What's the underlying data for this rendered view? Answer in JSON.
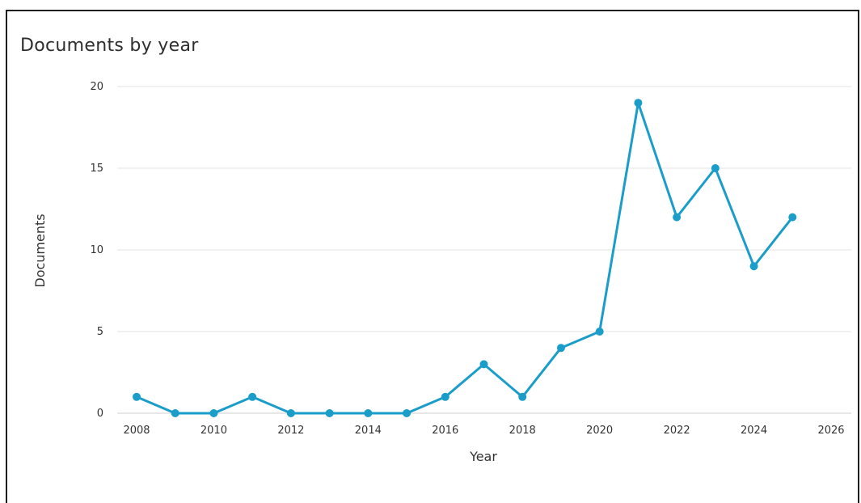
{
  "chart_data": {
    "type": "line",
    "title": "Documents by year",
    "xlabel": "Year",
    "ylabel": "Documents",
    "xlim": [
      2008,
      2026
    ],
    "ylim": [
      0,
      20
    ],
    "x_ticks": [
      2008,
      2010,
      2012,
      2014,
      2016,
      2018,
      2020,
      2022,
      2024,
      2026
    ],
    "y_ticks": [
      0,
      5,
      10,
      15,
      20
    ],
    "grid": "horizontal",
    "line_color": "#1a9dc8",
    "series": [
      {
        "x": [
          2008,
          2009,
          2010,
          2011,
          2012,
          2013,
          2014,
          2015,
          2016,
          2017,
          2018,
          2019,
          2020,
          2021,
          2022,
          2023,
          2024,
          2025
        ],
        "values": [
          1,
          0,
          0,
          1,
          0,
          0,
          0,
          0,
          1,
          3,
          1,
          4,
          5,
          19,
          12,
          15,
          9,
          12
        ]
      }
    ]
  }
}
